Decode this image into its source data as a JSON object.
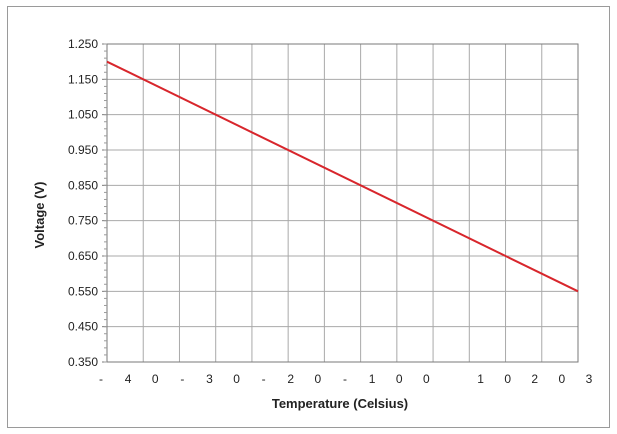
{
  "chart_data": {
    "type": "line",
    "title": "",
    "xlabel": "Temperature (Celsius)",
    "ylabel": "Voltage (V)",
    "xlim": [
      -40,
      100
    ],
    "ylim": [
      0.35,
      1.25
    ],
    "grid": true,
    "x_tick_labels": [
      "-",
      "4",
      "0",
      "-",
      "3",
      "0",
      "-",
      "2",
      "0",
      "-",
      "1",
      "0",
      "0",
      "",
      "1",
      "0",
      "2",
      "0",
      "3"
    ],
    "y_tick_labels": [
      "1.250",
      "1.150",
      "1.050",
      "0.950",
      "0.850",
      "0.750",
      "0.650",
      "0.550",
      "0.450",
      "0.350"
    ],
    "series": [
      {
        "color": "#d8262c",
        "x": [
          -40,
          100
        ],
        "y": [
          1.2,
          0.55
        ]
      }
    ]
  }
}
